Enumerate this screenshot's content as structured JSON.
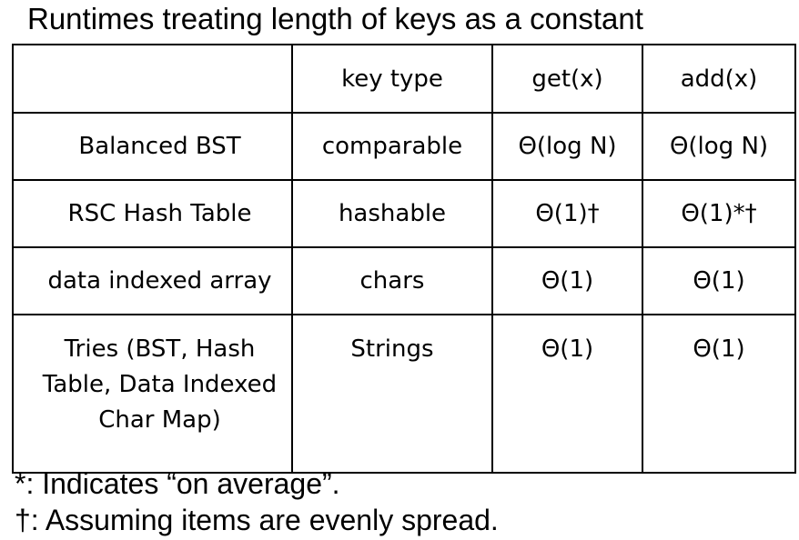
{
  "title": "Runtimes treating length of keys as a constant",
  "table": {
    "headers": [
      "",
      "key type",
      "get(x)",
      "add(x)"
    ],
    "rows": [
      {
        "name": "Balanced BST",
        "key_type": "comparable",
        "get": "Θ(log N)",
        "add": "Θ(log N)"
      },
      {
        "name": "RSC Hash Table",
        "key_type": "hashable",
        "get": "Θ(1)†",
        "add": "Θ(1)*†"
      },
      {
        "name": "data indexed array",
        "key_type": "chars",
        "get": "Θ(1)",
        "add": "Θ(1)"
      },
      {
        "name": "Tries (BST, Hash Table, Data Indexed Char Map)",
        "key_type": "Strings",
        "get": "Θ(1)",
        "add": "Θ(1)"
      }
    ]
  },
  "footnotes": {
    "average": "*: Indicates “on average”.",
    "spread": "†: Assuming items are evenly spread."
  }
}
